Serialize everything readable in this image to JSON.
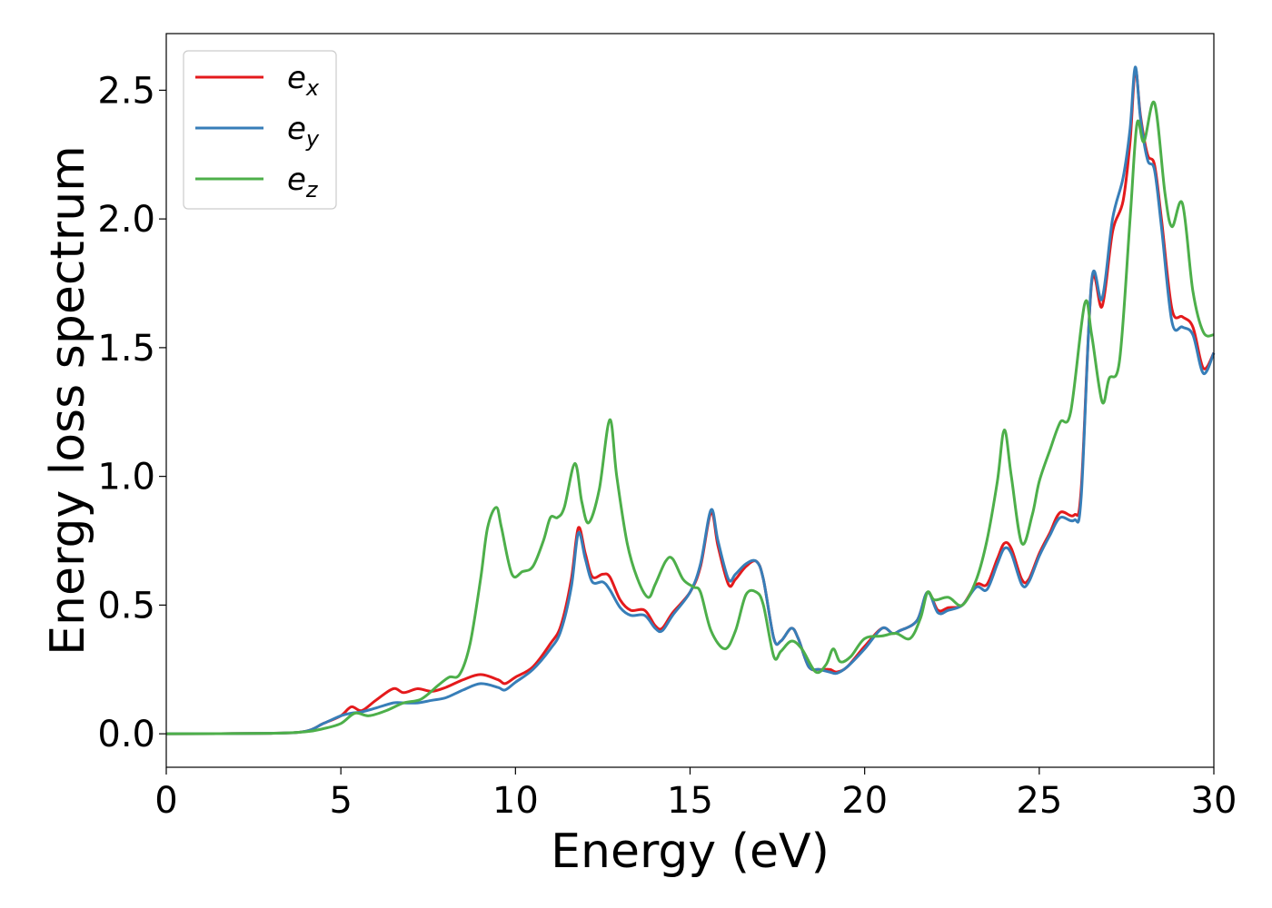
{
  "chart_data": {
    "type": "line",
    "title": "",
    "xlabel": "Energy (eV)",
    "ylabel": "Energy loss spectrum",
    "xlim": [
      0,
      30
    ],
    "ylim": [
      -0.13,
      2.72
    ],
    "xticks": [
      0,
      5,
      10,
      15,
      20,
      25,
      30
    ],
    "xtick_labels": [
      "0",
      "5",
      "10",
      "15",
      "20",
      "25",
      "30"
    ],
    "yticks": [
      0.0,
      0.5,
      1.0,
      1.5,
      2.0,
      2.5
    ],
    "ytick_labels": [
      "0.0",
      "0.5",
      "1.0",
      "1.5",
      "2.0",
      "2.5"
    ],
    "grid": false,
    "legend_position": "top-left",
    "series": [
      {
        "name": "e_x",
        "label_base": "e",
        "label_sub": "x",
        "color": "#e41a1c",
        "points": [
          [
            0,
            0
          ],
          [
            3,
            0.002
          ],
          [
            4,
            0.01
          ],
          [
            4.5,
            0.04
          ],
          [
            5,
            0.07
          ],
          [
            5.3,
            0.105
          ],
          [
            5.6,
            0.09
          ],
          [
            6,
            0.13
          ],
          [
            6.5,
            0.175
          ],
          [
            6.8,
            0.16
          ],
          [
            7.2,
            0.175
          ],
          [
            7.6,
            0.165
          ],
          [
            8,
            0.18
          ],
          [
            8.5,
            0.21
          ],
          [
            9,
            0.23
          ],
          [
            9.5,
            0.21
          ],
          [
            9.7,
            0.195
          ],
          [
            10,
            0.22
          ],
          [
            10.5,
            0.26
          ],
          [
            11,
            0.35
          ],
          [
            11.3,
            0.42
          ],
          [
            11.6,
            0.6
          ],
          [
            11.8,
            0.8
          ],
          [
            12,
            0.7
          ],
          [
            12.2,
            0.61
          ],
          [
            12.5,
            0.62
          ],
          [
            12.7,
            0.61
          ],
          [
            13,
            0.52
          ],
          [
            13.3,
            0.48
          ],
          [
            13.7,
            0.48
          ],
          [
            14,
            0.42
          ],
          [
            14.2,
            0.41
          ],
          [
            14.5,
            0.47
          ],
          [
            15,
            0.55
          ],
          [
            15.3,
            0.65
          ],
          [
            15.6,
            0.86
          ],
          [
            15.8,
            0.73
          ],
          [
            16.1,
            0.58
          ],
          [
            16.3,
            0.6
          ],
          [
            16.6,
            0.65
          ],
          [
            16.9,
            0.67
          ],
          [
            17.1,
            0.6
          ],
          [
            17.4,
            0.37
          ],
          [
            17.6,
            0.36
          ],
          [
            17.9,
            0.41
          ],
          [
            18.1,
            0.37
          ],
          [
            18.4,
            0.26
          ],
          [
            18.7,
            0.25
          ],
          [
            19,
            0.25
          ],
          [
            19.2,
            0.24
          ],
          [
            19.5,
            0.26
          ],
          [
            20,
            0.34
          ],
          [
            20.5,
            0.41
          ],
          [
            20.8,
            0.39
          ],
          [
            21,
            0.4
          ],
          [
            21.5,
            0.44
          ],
          [
            21.8,
            0.55
          ],
          [
            22.1,
            0.48
          ],
          [
            22.4,
            0.49
          ],
          [
            22.8,
            0.5
          ],
          [
            23.2,
            0.58
          ],
          [
            23.5,
            0.58
          ],
          [
            23.8,
            0.68
          ],
          [
            24,
            0.74
          ],
          [
            24.2,
            0.72
          ],
          [
            24.5,
            0.6
          ],
          [
            24.7,
            0.6
          ],
          [
            25,
            0.7
          ],
          [
            25.3,
            0.78
          ],
          [
            25.6,
            0.86
          ],
          [
            26,
            0.85
          ],
          [
            26.2,
            0.95
          ],
          [
            26.5,
            1.75
          ],
          [
            26.8,
            1.66
          ],
          [
            27.1,
            1.95
          ],
          [
            27.4,
            2.07
          ],
          [
            27.6,
            2.3
          ],
          [
            27.75,
            2.58
          ],
          [
            27.9,
            2.4
          ],
          [
            28.1,
            2.25
          ],
          [
            28.3,
            2.21
          ],
          [
            28.5,
            2.0
          ],
          [
            28.8,
            1.65
          ],
          [
            29.1,
            1.62
          ],
          [
            29.4,
            1.58
          ],
          [
            29.7,
            1.42
          ],
          [
            30,
            1.48
          ]
        ]
      },
      {
        "name": "e_y",
        "label_base": "e",
        "label_sub": "y",
        "color": "#377eb8",
        "points": [
          [
            0,
            0
          ],
          [
            3,
            0.002
          ],
          [
            4,
            0.01
          ],
          [
            4.5,
            0.04
          ],
          [
            5,
            0.07
          ],
          [
            5.3,
            0.08
          ],
          [
            5.6,
            0.085
          ],
          [
            6,
            0.1
          ],
          [
            6.5,
            0.12
          ],
          [
            6.8,
            0.12
          ],
          [
            7.2,
            0.12
          ],
          [
            7.6,
            0.13
          ],
          [
            8,
            0.14
          ],
          [
            8.5,
            0.17
          ],
          [
            9,
            0.195
          ],
          [
            9.5,
            0.18
          ],
          [
            9.7,
            0.17
          ],
          [
            10,
            0.2
          ],
          [
            10.5,
            0.25
          ],
          [
            11,
            0.33
          ],
          [
            11.3,
            0.4
          ],
          [
            11.6,
            0.57
          ],
          [
            11.8,
            0.78
          ],
          [
            12,
            0.68
          ],
          [
            12.2,
            0.59
          ],
          [
            12.5,
            0.59
          ],
          [
            12.7,
            0.56
          ],
          [
            13,
            0.49
          ],
          [
            13.3,
            0.46
          ],
          [
            13.7,
            0.46
          ],
          [
            14,
            0.41
          ],
          [
            14.2,
            0.4
          ],
          [
            14.5,
            0.46
          ],
          [
            15,
            0.55
          ],
          [
            15.3,
            0.66
          ],
          [
            15.6,
            0.87
          ],
          [
            15.8,
            0.75
          ],
          [
            16.1,
            0.6
          ],
          [
            16.3,
            0.62
          ],
          [
            16.6,
            0.66
          ],
          [
            16.9,
            0.67
          ],
          [
            17.1,
            0.6
          ],
          [
            17.4,
            0.37
          ],
          [
            17.6,
            0.36
          ],
          [
            17.9,
            0.41
          ],
          [
            18.1,
            0.37
          ],
          [
            18.4,
            0.26
          ],
          [
            18.7,
            0.25
          ],
          [
            19,
            0.24
          ],
          [
            19.2,
            0.235
          ],
          [
            19.5,
            0.26
          ],
          [
            20,
            0.33
          ],
          [
            20.5,
            0.41
          ],
          [
            20.8,
            0.39
          ],
          [
            21,
            0.4
          ],
          [
            21.5,
            0.44
          ],
          [
            21.8,
            0.55
          ],
          [
            22.1,
            0.47
          ],
          [
            22.4,
            0.48
          ],
          [
            22.8,
            0.5
          ],
          [
            23.2,
            0.57
          ],
          [
            23.5,
            0.56
          ],
          [
            23.8,
            0.66
          ],
          [
            24,
            0.72
          ],
          [
            24.2,
            0.7
          ],
          [
            24.5,
            0.58
          ],
          [
            24.7,
            0.59
          ],
          [
            25,
            0.69
          ],
          [
            25.3,
            0.77
          ],
          [
            25.6,
            0.84
          ],
          [
            26,
            0.83
          ],
          [
            26.2,
            0.92
          ],
          [
            26.5,
            1.76
          ],
          [
            26.8,
            1.69
          ],
          [
            27.1,
            2.0
          ],
          [
            27.4,
            2.16
          ],
          [
            27.6,
            2.35
          ],
          [
            27.75,
            2.59
          ],
          [
            27.9,
            2.39
          ],
          [
            28.1,
            2.23
          ],
          [
            28.3,
            2.19
          ],
          [
            28.5,
            1.97
          ],
          [
            28.8,
            1.6
          ],
          [
            29.1,
            1.58
          ],
          [
            29.4,
            1.55
          ],
          [
            29.7,
            1.4
          ],
          [
            30,
            1.48
          ]
        ]
      },
      {
        "name": "e_z",
        "label_base": "e",
        "label_sub": "z",
        "color": "#4daf4a",
        "points": [
          [
            0,
            0
          ],
          [
            3,
            0.002
          ],
          [
            4,
            0.008
          ],
          [
            4.5,
            0.02
          ],
          [
            5,
            0.04
          ],
          [
            5.4,
            0.08
          ],
          [
            5.8,
            0.07
          ],
          [
            6.3,
            0.09
          ],
          [
            6.8,
            0.12
          ],
          [
            7.3,
            0.135
          ],
          [
            7.8,
            0.19
          ],
          [
            8.1,
            0.22
          ],
          [
            8.4,
            0.23
          ],
          [
            8.7,
            0.35
          ],
          [
            9,
            0.6
          ],
          [
            9.2,
            0.8
          ],
          [
            9.45,
            0.88
          ],
          [
            9.6,
            0.8
          ],
          [
            9.9,
            0.62
          ],
          [
            10.2,
            0.63
          ],
          [
            10.5,
            0.65
          ],
          [
            10.8,
            0.75
          ],
          [
            11,
            0.84
          ],
          [
            11.2,
            0.84
          ],
          [
            11.4,
            0.88
          ],
          [
            11.7,
            1.05
          ],
          [
            11.9,
            0.9
          ],
          [
            12.1,
            0.82
          ],
          [
            12.4,
            0.95
          ],
          [
            12.7,
            1.22
          ],
          [
            12.9,
            1.0
          ],
          [
            13.2,
            0.74
          ],
          [
            13.5,
            0.6
          ],
          [
            13.8,
            0.53
          ],
          [
            14,
            0.58
          ],
          [
            14.3,
            0.67
          ],
          [
            14.5,
            0.68
          ],
          [
            14.8,
            0.6
          ],
          [
            15.1,
            0.57
          ],
          [
            15.3,
            0.55
          ],
          [
            15.6,
            0.4
          ],
          [
            16,
            0.33
          ],
          [
            16.3,
            0.4
          ],
          [
            16.6,
            0.54
          ],
          [
            16.9,
            0.55
          ],
          [
            17.1,
            0.5
          ],
          [
            17.4,
            0.3
          ],
          [
            17.6,
            0.32
          ],
          [
            17.9,
            0.36
          ],
          [
            18.2,
            0.33
          ],
          [
            18.6,
            0.24
          ],
          [
            18.9,
            0.27
          ],
          [
            19.1,
            0.33
          ],
          [
            19.3,
            0.28
          ],
          [
            19.6,
            0.3
          ],
          [
            20,
            0.37
          ],
          [
            20.5,
            0.38
          ],
          [
            20.9,
            0.39
          ],
          [
            21.3,
            0.37
          ],
          [
            21.6,
            0.45
          ],
          [
            21.8,
            0.55
          ],
          [
            22,
            0.52
          ],
          [
            22.4,
            0.53
          ],
          [
            22.8,
            0.5
          ],
          [
            23.2,
            0.6
          ],
          [
            23.5,
            0.75
          ],
          [
            23.8,
            0.98
          ],
          [
            24,
            1.18
          ],
          [
            24.2,
            1.0
          ],
          [
            24.5,
            0.74
          ],
          [
            24.8,
            0.85
          ],
          [
            25,
            0.98
          ],
          [
            25.3,
            1.1
          ],
          [
            25.6,
            1.21
          ],
          [
            25.9,
            1.25
          ],
          [
            26.3,
            1.67
          ],
          [
            26.5,
            1.55
          ],
          [
            26.8,
            1.29
          ],
          [
            27,
            1.38
          ],
          [
            27.3,
            1.45
          ],
          [
            27.6,
            2.0
          ],
          [
            27.8,
            2.37
          ],
          [
            28,
            2.3
          ],
          [
            28.3,
            2.45
          ],
          [
            28.6,
            2.1
          ],
          [
            28.8,
            1.97
          ],
          [
            29.1,
            2.06
          ],
          [
            29.4,
            1.72
          ],
          [
            29.7,
            1.56
          ],
          [
            30,
            1.55
          ]
        ]
      }
    ]
  }
}
